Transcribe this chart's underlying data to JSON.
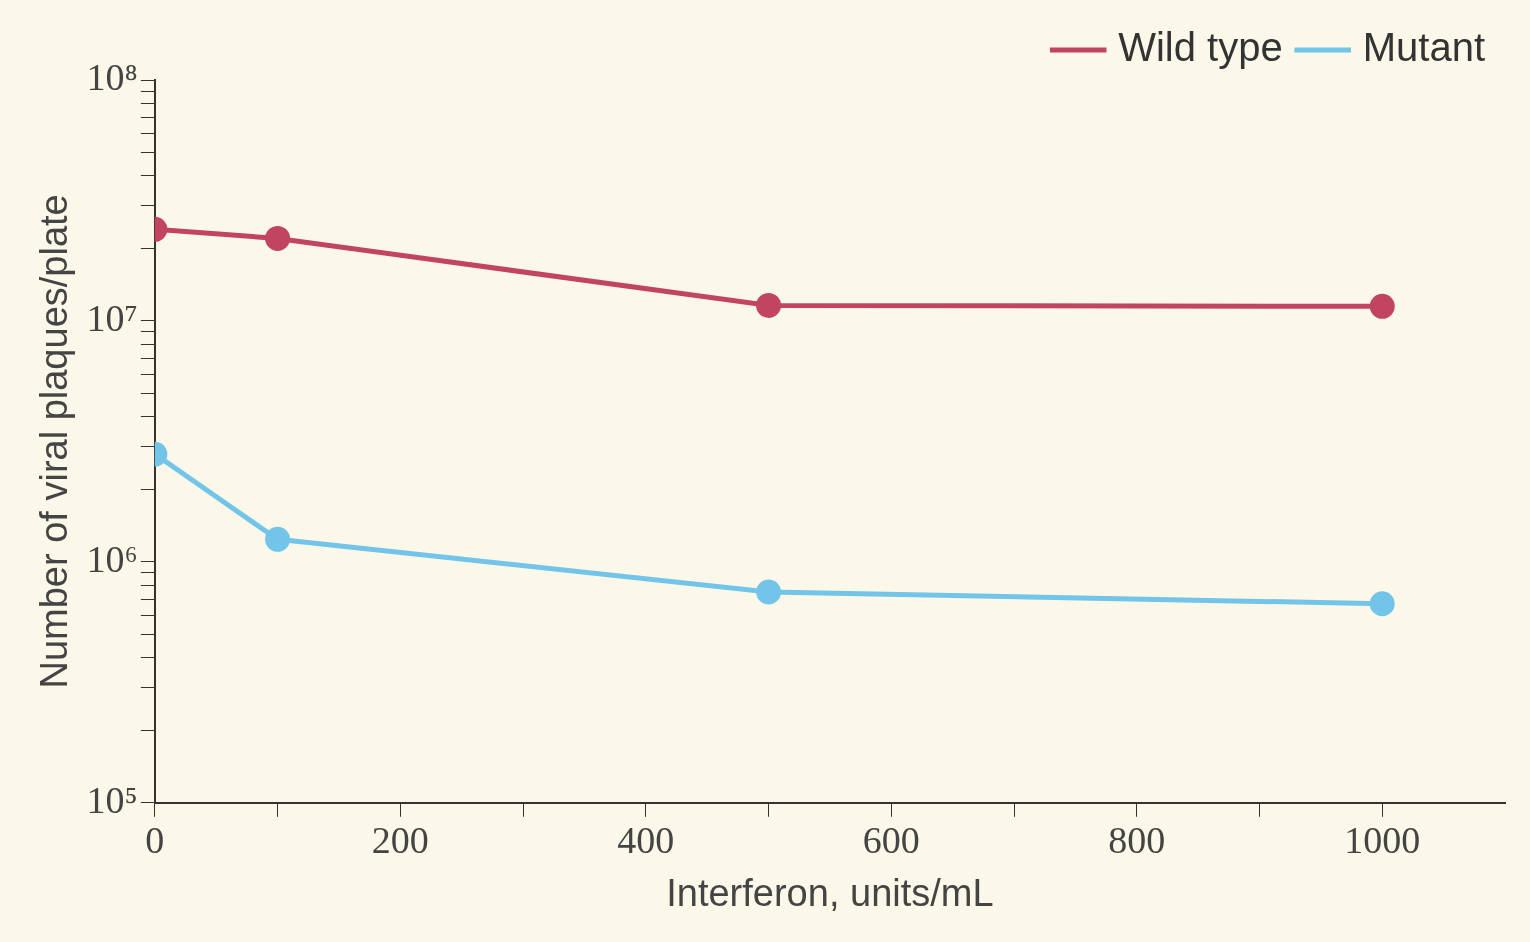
{
  "chart_data": {
    "type": "line",
    "xlabel": "Interferon, units/mL",
    "ylabel": "Number of viral plaques/plate",
    "series": [
      {
        "name": "Wild type",
        "color": "#c2455f",
        "x": [
          0,
          100,
          500,
          1000
        ],
        "values": [
          24000000,
          22000000,
          11600000,
          11500000
        ]
      },
      {
        "name": "Mutant",
        "color": "#72c4e8",
        "x": [
          0,
          100,
          500,
          1000
        ],
        "values": [
          2800000,
          1240000,
          750000,
          670000
        ]
      }
    ],
    "xlim": [
      0,
      1100
    ],
    "xticks": [
      0,
      {
        "value": 100,
        "label": null
      },
      200,
      {
        "value": 300,
        "label": null
      },
      400,
      {
        "value": 500,
        "label": null
      },
      600,
      {
        "value": 700,
        "label": null
      },
      800,
      {
        "value": 900,
        "label": null
      },
      1000
    ],
    "ylim": [
      100000,
      100000000
    ],
    "log": "y",
    "yticks": [
      {
        "value": 100000,
        "label": "10⁵"
      },
      {
        "value": 200000,
        "label": null
      },
      {
        "value": 300000,
        "label": null
      },
      {
        "value": 400000,
        "label": null
      },
      {
        "value": 500000,
        "label": null
      },
      {
        "value": 600000,
        "label": null
      },
      {
        "value": 700000,
        "label": null
      },
      {
        "value": 800000,
        "label": null
      },
      {
        "value": 900000,
        "label": null
      },
      {
        "value": 1000000,
        "label": "10⁶"
      },
      {
        "value": 2000000,
        "label": null
      },
      {
        "value": 3000000,
        "label": null
      },
      {
        "value": 4000000,
        "label": null
      },
      {
        "value": 5000000,
        "label": null
      },
      {
        "value": 6000000,
        "label": null
      },
      {
        "value": 7000000,
        "label": null
      },
      {
        "value": 8000000,
        "label": null
      },
      {
        "value": 9000000,
        "label": null
      },
      {
        "value": 10000000,
        "label": "10⁷"
      },
      {
        "value": 20000000,
        "label": null
      },
      {
        "value": 30000000,
        "label": null
      },
      {
        "value": 40000000,
        "label": null
      },
      {
        "value": 50000000,
        "label": null
      },
      {
        "value": 60000000,
        "label": null
      },
      {
        "value": 70000000,
        "label": null
      },
      {
        "value": 80000000,
        "label": null
      },
      {
        "value": 90000000,
        "label": null
      },
      {
        "value": 100000000,
        "label": "10⁸"
      }
    ],
    "grid": false,
    "legend": "top right",
    "marker": "circle",
    "line_style": "solid"
  }
}
